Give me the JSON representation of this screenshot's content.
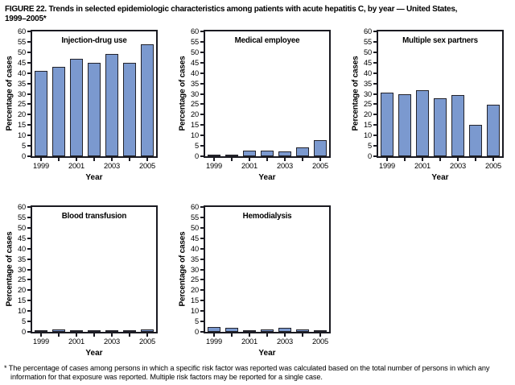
{
  "figure": {
    "title_line1": "FIGURE 22. Trends in selected epidemiologic characteristics among patients with acute hepatitis C, by year — United States,",
    "title_line2": "1999–2005*",
    "footnote": "* The percentage of cases among persons in which a specific risk factor was reported was calculated based on the total number of persons in which any information for that exposure was reported. Multiple risk factors may be reported for a single case."
  },
  "axes": {
    "y_label": "Percentage of cases",
    "x_label": "Year",
    "y_min": 0,
    "y_max": 60,
    "y_step": 5,
    "years": [
      1999,
      2000,
      2001,
      2002,
      2003,
      2004,
      2005
    ],
    "x_tick_labels": [
      "1999",
      "2001",
      "2003",
      "2005"
    ]
  },
  "colors": {
    "bar_fill": "#7b99cf",
    "bar_border": "#23232b",
    "frame": "#1a1a21",
    "text": "#000000",
    "background": "#ffffff"
  },
  "chart_data": [
    {
      "type": "bar",
      "title": "Injection-drug use",
      "xlabel": "Year",
      "ylabel": "Percentage of cases",
      "ylim": [
        0,
        60
      ],
      "grid": false,
      "categories": [
        1999,
        2000,
        2001,
        2002,
        2003,
        2004,
        2005
      ],
      "values": [
        41,
        43,
        47,
        45,
        49,
        45,
        54
      ]
    },
    {
      "type": "bar",
      "title": "Medical employee",
      "xlabel": "Year",
      "ylabel": "Percentage of cases",
      "ylim": [
        0,
        60
      ],
      "grid": false,
      "categories": [
        1999,
        2000,
        2001,
        2002,
        2003,
        2004,
        2005
      ],
      "values": [
        0.8,
        0.8,
        2.8,
        2.8,
        2.5,
        4.3,
        7.6
      ]
    },
    {
      "type": "bar",
      "title": "Multiple sex partners",
      "xlabel": "Year",
      "ylabel": "Percentage of cases",
      "ylim": [
        0,
        60
      ],
      "grid": false,
      "categories": [
        1999,
        2000,
        2001,
        2002,
        2003,
        2004,
        2005
      ],
      "values": [
        30.7,
        30,
        31.7,
        27.7,
        29.5,
        15,
        24.7
      ]
    },
    {
      "type": "bar",
      "title": "Blood transfusion",
      "xlabel": "Year",
      "ylabel": "Percentage of cases",
      "ylim": [
        0,
        60
      ],
      "grid": false,
      "categories": [
        1999,
        2000,
        2001,
        2002,
        2003,
        2004,
        2005
      ],
      "values": [
        0.8,
        1.1,
        0.2,
        0.6,
        0.9,
        0.8,
        1.2
      ]
    },
    {
      "type": "bar",
      "title": "Hemodialysis",
      "xlabel": "Year",
      "ylabel": "Percentage of cases",
      "ylim": [
        0,
        60
      ],
      "grid": false,
      "categories": [
        1999,
        2000,
        2001,
        2002,
        2003,
        2004,
        2005
      ],
      "values": [
        2.3,
        2.0,
        0.1,
        1.0,
        2.0,
        1.1,
        0.6
      ]
    }
  ]
}
